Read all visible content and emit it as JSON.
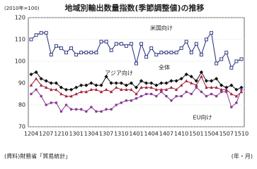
{
  "chart_data": {
    "type": "line",
    "title": "地域別輸出数量指数(季節調整値)の推移",
    "unit_note": "(2010年=100)",
    "source": "(資料)財務省「貿易統計」",
    "x_label": "(年・月)",
    "categories": [
      "1204",
      null,
      null,
      "1207",
      null,
      null,
      "1210",
      null,
      null,
      "1301",
      null,
      null,
      "1304",
      null,
      null,
      "1307",
      null,
      null,
      "1310",
      null,
      null,
      "1401",
      null,
      null,
      "1404",
      null,
      null,
      "1407",
      null,
      null,
      "1410",
      null,
      null,
      "1501",
      null,
      null,
      "1504",
      null,
      null,
      "1507",
      null,
      null,
      "1510"
    ],
    "ylim": [
      70,
      120
    ],
    "yticks": [
      70,
      80,
      90,
      100,
      110,
      120
    ],
    "grid": true,
    "series": [
      {
        "name": "米国向け",
        "color": "#1f2a78",
        "marker": "square",
        "values": [
          110,
          112,
          113,
          113,
          103,
          107,
          106,
          104,
          106,
          103,
          104,
          104,
          104,
          104,
          109,
          109,
          105,
          108,
          108,
          107,
          108,
          99,
          108,
          102,
          106,
          103,
          104,
          104,
          104,
          104,
          106,
          109,
          104,
          108,
          103,
          110,
          113,
          99,
          101,
          104,
          97,
          100,
          101
        ]
      },
      {
        "name": "全体",
        "color": "#111111",
        "marker": "diamond",
        "values": [
          94,
          95,
          92,
          91,
          90,
          90,
          88,
          87,
          87,
          88,
          89,
          89,
          90,
          89,
          89,
          93,
          90,
          90,
          90,
          89,
          90,
          88,
          91,
          90,
          90,
          89,
          90,
          90,
          91,
          91,
          92,
          94,
          93,
          91,
          95,
          91,
          91,
          92,
          89,
          88,
          89,
          87,
          88
        ]
      },
      {
        "name": "アジア向け",
        "color": "#a3203a",
        "marker": "triangle",
        "values": [
          89,
          92,
          89,
          88,
          87,
          87,
          85,
          84,
          84,
          85,
          86,
          86,
          87,
          87,
          86,
          87,
          86,
          88,
          87,
          87,
          87,
          85,
          88,
          88,
          88,
          87,
          87,
          87,
          88,
          87,
          89,
          91,
          90,
          89,
          93,
          88,
          88,
          88,
          87,
          87,
          85,
          84,
          86
        ]
      },
      {
        "name": "EU向け",
        "color": "#8a3a94",
        "marker": "circle",
        "values": [
          85,
          87,
          84,
          80,
          81,
          81,
          77,
          80,
          78,
          78,
          78,
          77,
          79,
          77,
          77,
          78,
          78,
          80,
          81,
          82,
          82,
          83,
          84,
          85,
          85,
          84,
          86,
          84,
          82,
          84,
          84,
          86,
          85,
          88,
          86,
          84,
          85,
          84,
          86,
          86,
          79,
          81,
          87
        ]
      }
    ]
  }
}
